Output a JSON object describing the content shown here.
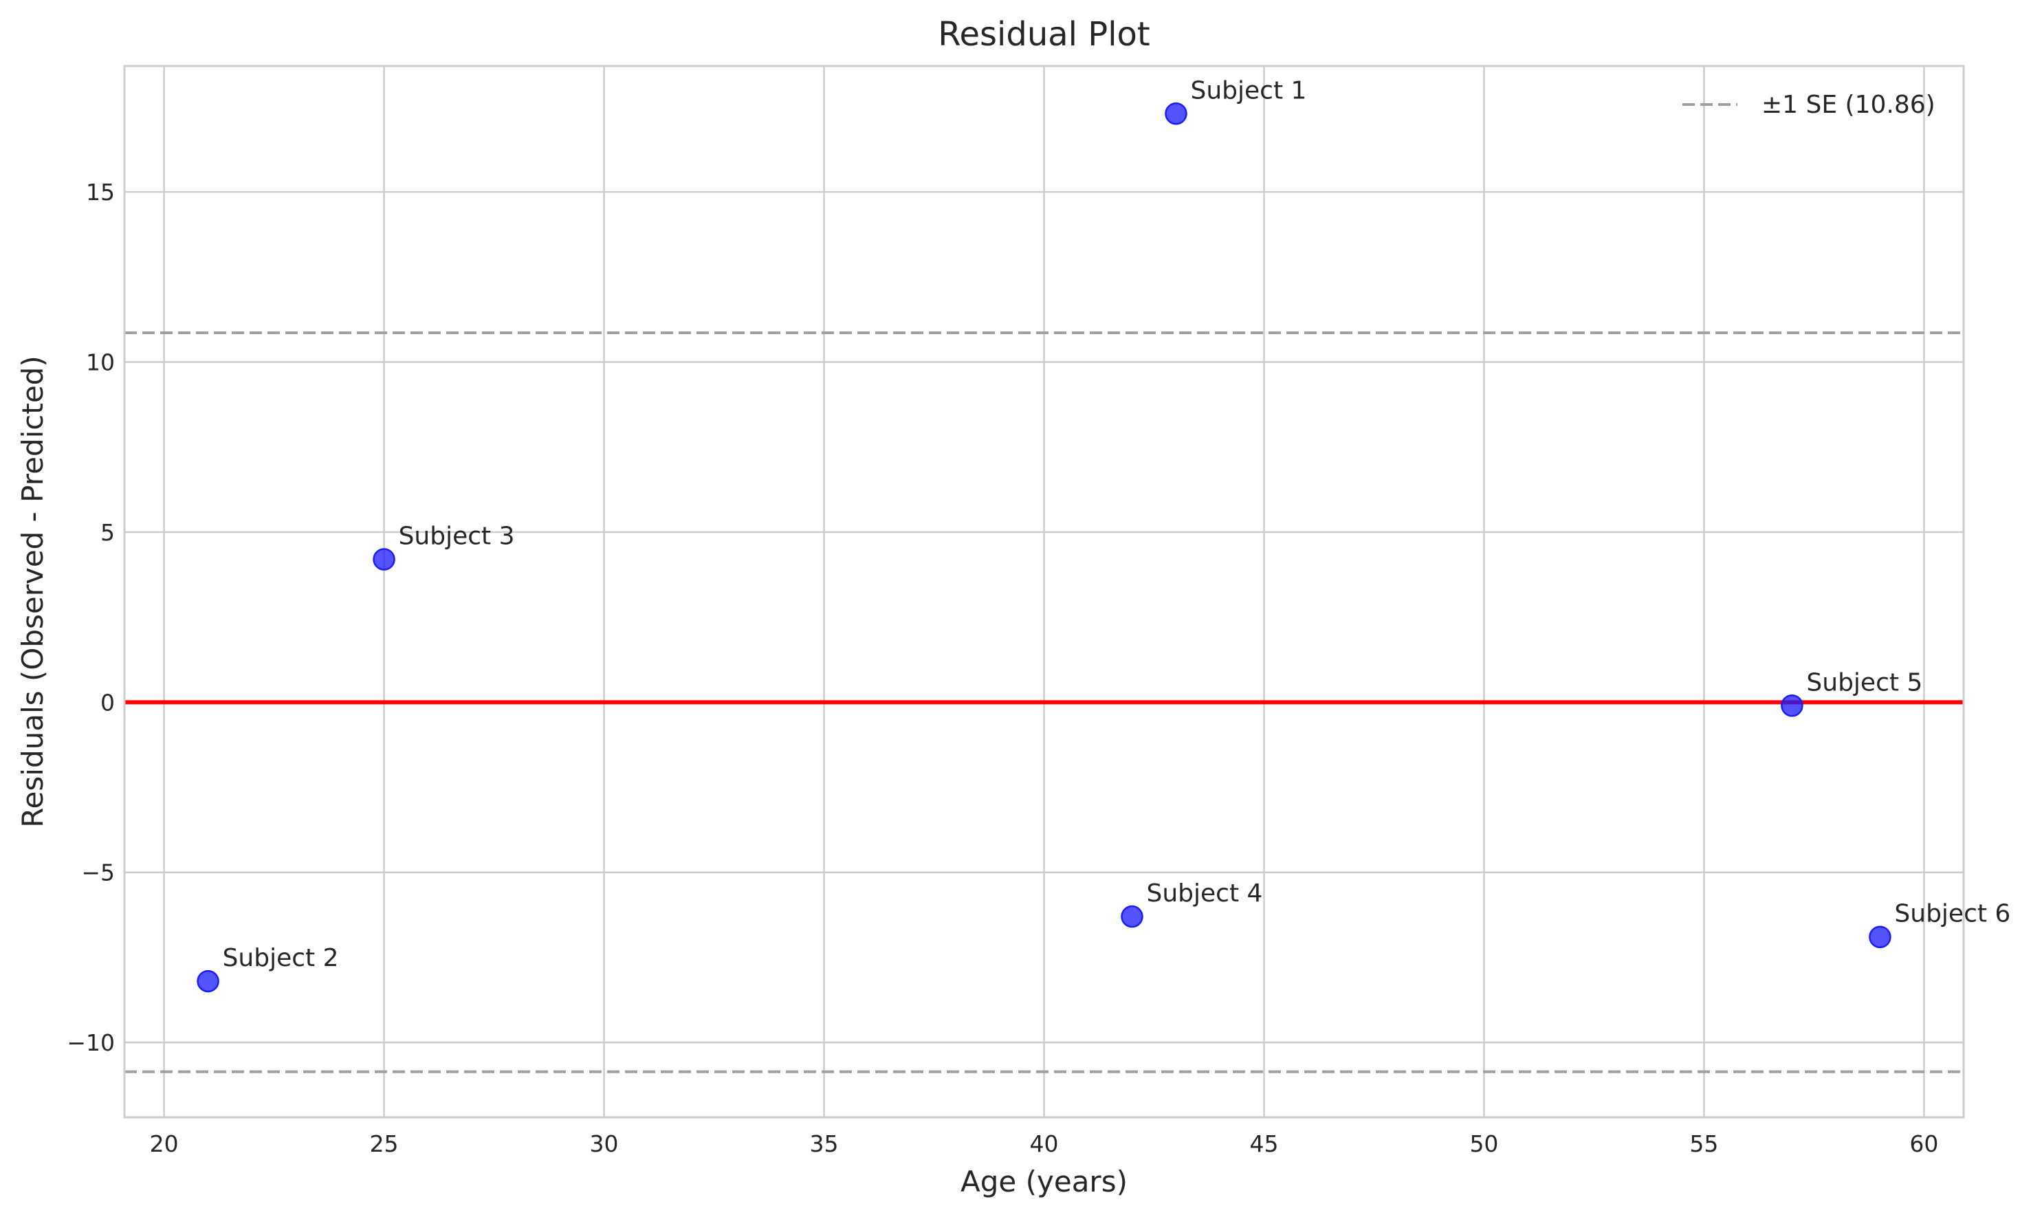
{
  "chart_data": {
    "type": "scatter",
    "title": "Residual Plot",
    "xlabel": "Age (years)",
    "ylabel": "Residuals (Observed - Predicted)",
    "xlim": [
      19.1,
      60.9
    ],
    "ylim": [
      -12.2,
      18.7
    ],
    "xticks": [
      20,
      25,
      30,
      35,
      40,
      45,
      50,
      55,
      60
    ],
    "yticks": [
      -10,
      -5,
      0,
      5,
      10,
      15
    ],
    "ytick_labels": [
      "−10",
      "−5",
      "0",
      "5",
      "10",
      "15"
    ],
    "xtick_labels": [
      "20",
      "25",
      "30",
      "35",
      "40",
      "45",
      "50",
      "55",
      "60"
    ],
    "grid": true,
    "points": [
      {
        "label": "Subject 1",
        "x": 43,
        "y": 17.3
      },
      {
        "label": "Subject 2",
        "x": 21,
        "y": -8.2
      },
      {
        "label": "Subject 3",
        "x": 25,
        "y": 4.2
      },
      {
        "label": "Subject 4",
        "x": 42,
        "y": -6.3
      },
      {
        "label": "Subject 5",
        "x": 57,
        "y": -0.1
      },
      {
        "label": "Subject 6",
        "x": 59,
        "y": -6.9
      }
    ],
    "reference_line": {
      "y": 0,
      "color": "#ff0000"
    },
    "se_lines": {
      "value": 10.86,
      "color": "#a0a0a0",
      "legend_label": "±1 SE (10.86)"
    },
    "legend_placement": "top-right",
    "point_color": "#1a1aff"
  }
}
